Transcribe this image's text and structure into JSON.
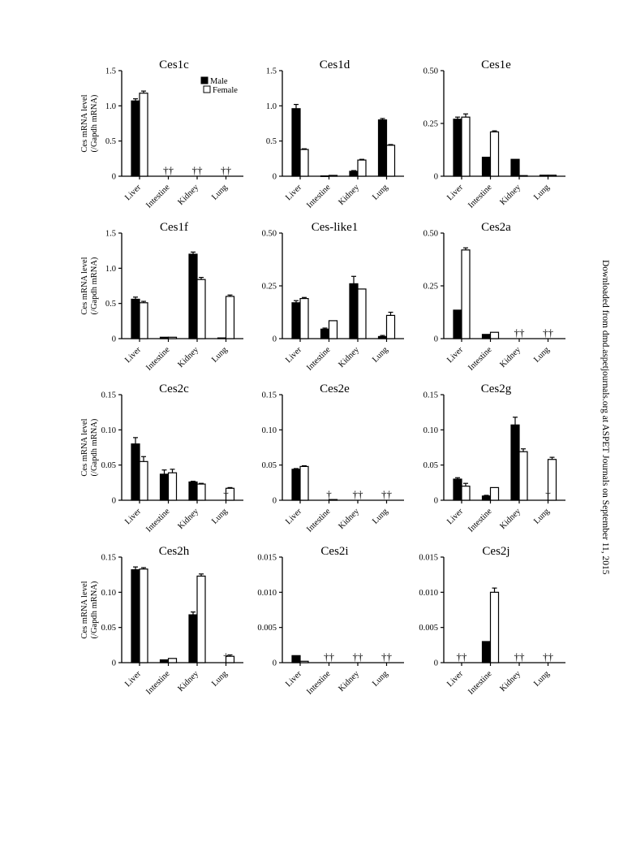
{
  "side_note": "Downloaded from dmd.aspetjournals.org at ASPET Journals on September 11, 2015",
  "legend": {
    "male": "Male",
    "female": "Female"
  },
  "y_axis_label_lines": [
    "Ces mRNA level",
    "(/Gapdh mRNA)"
  ],
  "colors": {
    "male": "#000000",
    "female": "#ffffff",
    "axis": "#000000"
  },
  "chart_data": [
    {
      "type": "bar",
      "title": "Ces1c",
      "categories": [
        "Liver",
        "Intestine",
        "Kidney",
        "Lung"
      ],
      "ylim": [
        0,
        1.5
      ],
      "yticks": [
        "0",
        "0.5",
        "1.0",
        "1.5"
      ],
      "series": [
        {
          "name": "Male",
          "values": [
            1.07,
            0,
            0,
            0
          ],
          "errors": [
            0.03,
            0,
            0,
            0
          ]
        },
        {
          "name": "Female",
          "values": [
            1.18,
            0,
            0,
            0
          ],
          "errors": [
            0.03,
            0,
            0,
            0
          ]
        }
      ],
      "annotations": [
        "",
        "††",
        "††",
        "††"
      ]
    },
    {
      "type": "bar",
      "title": "Ces1d",
      "categories": [
        "Liver",
        "Intestine",
        "Kidney",
        "Lung"
      ],
      "ylim": [
        0,
        1.5
      ],
      "yticks": [
        "0",
        "0.5",
        "1.0",
        "1.5"
      ],
      "series": [
        {
          "name": "Male",
          "values": [
            0.96,
            0.005,
            0.07,
            0.8
          ],
          "errors": [
            0.06,
            0,
            0.01,
            0.02
          ]
        },
        {
          "name": "Female",
          "values": [
            0.38,
            0.012,
            0.23,
            0.44
          ],
          "errors": [
            0.01,
            0,
            0.01,
            0.01
          ]
        }
      ],
      "annotations": [
        "",
        "",
        "",
        ""
      ]
    },
    {
      "type": "bar",
      "title": "Ces1e",
      "categories": [
        "Liver",
        "Intestine",
        "Kidney",
        "Lung"
      ],
      "ylim": [
        0,
        0.5
      ],
      "yticks": [
        "0",
        "0.25",
        "0.50"
      ],
      "series": [
        {
          "name": "Male",
          "values": [
            0.27,
            0.09,
            0.08,
            0.005
          ],
          "errors": [
            0.01,
            0,
            0,
            0
          ]
        },
        {
          "name": "Female",
          "values": [
            0.28,
            0.21,
            0.003,
            0.005
          ],
          "errors": [
            0.015,
            0.005,
            0,
            0
          ]
        }
      ],
      "annotations": [
        "",
        "",
        "",
        ""
      ]
    },
    {
      "type": "bar",
      "title": "Ces1f",
      "categories": [
        "Liver",
        "Intestine",
        "Kidney",
        "Lung"
      ],
      "ylim": [
        0,
        1.5
      ],
      "yticks": [
        "0",
        "0.5",
        "1.0",
        "1.5"
      ],
      "series": [
        {
          "name": "Male",
          "values": [
            0.56,
            0.02,
            1.2,
            0.01
          ],
          "errors": [
            0.03,
            0,
            0.03,
            0
          ]
        },
        {
          "name": "Female",
          "values": [
            0.51,
            0.02,
            0.84,
            0.6
          ],
          "errors": [
            0.02,
            0,
            0.03,
            0.02
          ]
        }
      ],
      "annotations": [
        "",
        "",
        "",
        ""
      ]
    },
    {
      "type": "bar",
      "title": "Ces-like1",
      "categories": [
        "Liver",
        "Intestine",
        "Kidney",
        "Lung"
      ],
      "ylim": [
        0,
        0.5
      ],
      "yticks": [
        "0",
        "0.25",
        "0.50"
      ],
      "series": [
        {
          "name": "Male",
          "values": [
            0.17,
            0.045,
            0.26,
            0.01
          ],
          "errors": [
            0.01,
            0.005,
            0.035,
            0.005
          ]
        },
        {
          "name": "Female",
          "values": [
            0.19,
            0.085,
            0.235,
            0.11
          ],
          "errors": [
            0.005,
            0,
            0,
            0.015
          ]
        }
      ],
      "annotations": [
        "",
        "",
        "",
        ""
      ]
    },
    {
      "type": "bar",
      "title": "Ces2a",
      "categories": [
        "Liver",
        "Intestine",
        "Kidney",
        "Lung"
      ],
      "ylim": [
        0,
        0.5
      ],
      "yticks": [
        "0",
        "0.25",
        "0.50"
      ],
      "series": [
        {
          "name": "Male",
          "values": [
            0.135,
            0.02,
            0,
            0
          ],
          "errors": [
            0,
            0,
            0,
            0
          ]
        },
        {
          "name": "Female",
          "values": [
            0.42,
            0.03,
            0,
            0
          ],
          "errors": [
            0.01,
            0,
            0,
            0
          ]
        }
      ],
      "annotations": [
        "",
        "",
        "††",
        "††"
      ]
    },
    {
      "type": "bar",
      "title": "Ces2c",
      "categories": [
        "Liver",
        "Intestine",
        "Kidney",
        "Lung"
      ],
      "ylim": [
        0,
        0.15
      ],
      "yticks": [
        "0",
        "0.05",
        "0.10",
        "0.15"
      ],
      "series": [
        {
          "name": "Male",
          "values": [
            0.08,
            0.037,
            0.026,
            0
          ],
          "errors": [
            0.009,
            0.006,
            0.001,
            0
          ]
        },
        {
          "name": "Female",
          "values": [
            0.055,
            0.039,
            0.023,
            0.017
          ],
          "errors": [
            0.007,
            0.005,
            0.001,
            0.001
          ]
        }
      ],
      "annotations": [
        "",
        "",
        "",
        "†"
      ]
    },
    {
      "type": "bar",
      "title": "Ces2e",
      "categories": [
        "Liver",
        "Intestine",
        "Kidney",
        "Lung"
      ],
      "ylim": [
        0,
        0.15
      ],
      "yticks": [
        "0",
        "0.05",
        "0.10",
        "0.15"
      ],
      "series": [
        {
          "name": "Male",
          "values": [
            0.044,
            0,
            0,
            0
          ],
          "errors": [
            0.001,
            0,
            0,
            0
          ]
        },
        {
          "name": "Female",
          "values": [
            0.048,
            0.001,
            0,
            0
          ],
          "errors": [
            0.001,
            0,
            0,
            0
          ]
        }
      ],
      "annotations": [
        "",
        "†",
        "††",
        "††"
      ]
    },
    {
      "type": "bar",
      "title": "Ces2g",
      "categories": [
        "Liver",
        "Intestine",
        "Kidney",
        "Lung"
      ],
      "ylim": [
        0,
        0.15
      ],
      "yticks": [
        "0",
        "0.05",
        "0.10",
        "0.15"
      ],
      "series": [
        {
          "name": "Male",
          "values": [
            0.03,
            0.006,
            0.107,
            0
          ],
          "errors": [
            0.002,
            0.001,
            0.011,
            0
          ]
        },
        {
          "name": "Female",
          "values": [
            0.02,
            0.018,
            0.069,
            0.058
          ],
          "errors": [
            0.004,
            0,
            0.004,
            0.003
          ]
        }
      ],
      "annotations": [
        "",
        "",
        "",
        "†"
      ]
    },
    {
      "type": "bar",
      "title": "Ces2h",
      "categories": [
        "Liver",
        "Intestine",
        "Kidney",
        "Lung"
      ],
      "ylim": [
        0,
        0.15
      ],
      "yticks": [
        "0",
        "0.05",
        "0.10",
        "0.15"
      ],
      "series": [
        {
          "name": "Male",
          "values": [
            0.132,
            0.004,
            0.068,
            0
          ],
          "errors": [
            0.004,
            0,
            0.004,
            0
          ]
        },
        {
          "name": "Female",
          "values": [
            0.133,
            0.006,
            0.123,
            0.009
          ],
          "errors": [
            0.002,
            0,
            0.003,
            0.002
          ]
        }
      ],
      "annotations": [
        "",
        "",
        "",
        "†"
      ]
    },
    {
      "type": "bar",
      "title": "Ces2i",
      "categories": [
        "Liver",
        "Intestine",
        "Kidney",
        "Lung"
      ],
      "ylim": [
        0,
        0.015
      ],
      "yticks": [
        "0",
        "0.005",
        "0.010",
        "0.015"
      ],
      "series": [
        {
          "name": "Male",
          "values": [
            0.001,
            0,
            0,
            0
          ],
          "errors": [
            0,
            0,
            0,
            0
          ]
        },
        {
          "name": "Female",
          "values": [
            0.0002,
            0,
            0,
            0
          ],
          "errors": [
            0,
            0,
            0,
            0
          ]
        }
      ],
      "annotations": [
        "",
        "††",
        "††",
        "††"
      ]
    },
    {
      "type": "bar",
      "title": "Ces2j",
      "categories": [
        "Liver",
        "Intestine",
        "Kidney",
        "Lung"
      ],
      "ylim": [
        0,
        0.015
      ],
      "yticks": [
        "0",
        "0.005",
        "0.010",
        "0.015"
      ],
      "series": [
        {
          "name": "Male",
          "values": [
            0,
            0.003,
            0,
            0
          ],
          "errors": [
            0,
            0,
            0,
            0
          ]
        },
        {
          "name": "Female",
          "values": [
            0,
            0.01,
            0,
            0
          ],
          "errors": [
            0,
            0.0006,
            0,
            0
          ]
        }
      ],
      "annotations": [
        "††",
        "",
        "††",
        "††"
      ]
    }
  ]
}
